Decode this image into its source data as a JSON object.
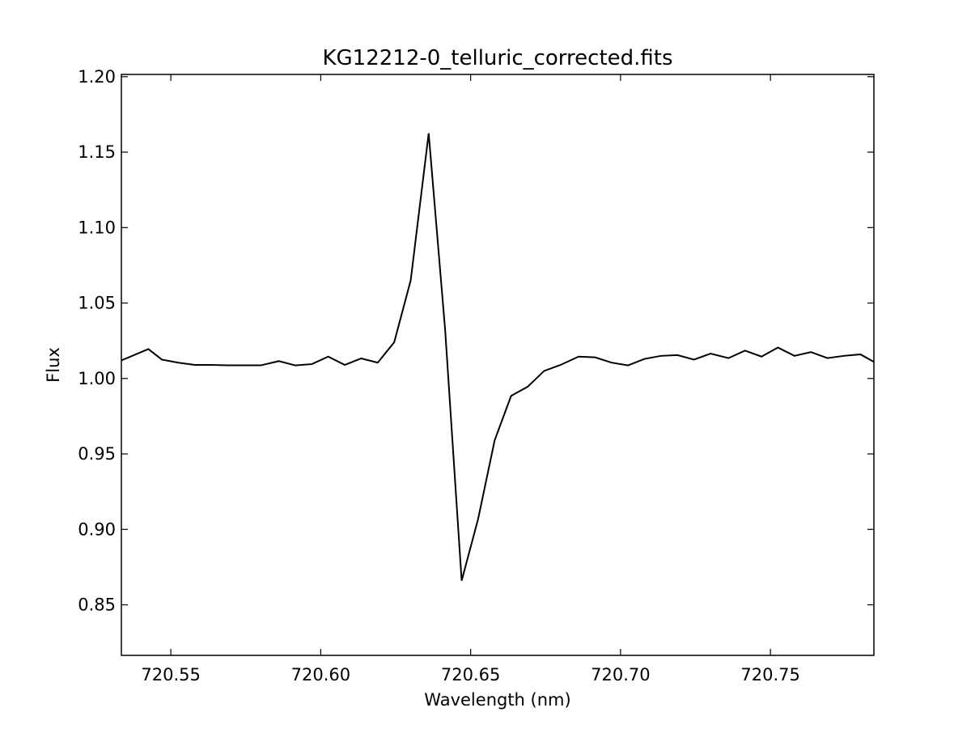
{
  "chart_data": {
    "type": "line",
    "title": "KG12212-0_telluric_corrected.fits",
    "xlabel": "Wavelength (nm)",
    "ylabel": "Flux",
    "xlim": [
      720.5335,
      720.7845
    ],
    "ylim": [
      0.8165,
      1.2015
    ],
    "xticks": [
      720.55,
      720.6,
      720.65,
      720.7,
      720.75
    ],
    "xtick_labels": [
      "720.55",
      "720.60",
      "720.65",
      "720.70",
      "720.75"
    ],
    "yticks": [
      0.85,
      0.9,
      0.95,
      1.0,
      1.05,
      1.1,
      1.15,
      1.2
    ],
    "ytick_labels": [
      "0.85",
      "0.90",
      "0.95",
      "1.00",
      "1.05",
      "1.10",
      "1.15",
      "1.20"
    ],
    "grid": false,
    "line_color": "#000000",
    "series": [
      {
        "x": [
          720.5335,
          720.5425,
          720.547,
          720.5525,
          720.558,
          720.5635,
          720.569,
          720.5745,
          720.58,
          720.586,
          720.5915,
          720.597,
          720.6025,
          720.608,
          720.6135,
          720.619,
          720.6245,
          720.63,
          720.636,
          720.6415,
          720.647,
          720.6525,
          720.658,
          720.6635,
          720.669,
          720.6745,
          720.68,
          720.686,
          720.6915,
          720.697,
          720.7025,
          720.708,
          720.7135,
          720.719,
          720.7245,
          720.73,
          720.736,
          720.7415,
          720.747,
          720.7525,
          720.758,
          720.7635,
          720.769,
          720.7745,
          720.78,
          720.7845
        ],
        "y": [
          1.012,
          1.0195,
          1.0125,
          1.0105,
          1.009,
          1.009,
          1.0087,
          1.0087,
          1.0087,
          1.0115,
          1.0087,
          1.0095,
          1.0145,
          1.009,
          1.0133,
          1.0105,
          1.024,
          1.065,
          1.1625,
          1.032,
          0.866,
          0.907,
          0.959,
          0.9885,
          0.9945,
          1.005,
          1.009,
          1.0145,
          1.014,
          1.0105,
          1.0087,
          1.013,
          1.015,
          1.0155,
          1.0125,
          1.0165,
          1.0135,
          1.0185,
          1.0145,
          1.0205,
          1.015,
          1.0175,
          1.0135,
          1.015,
          1.016,
          1.011
        ]
      }
    ]
  }
}
